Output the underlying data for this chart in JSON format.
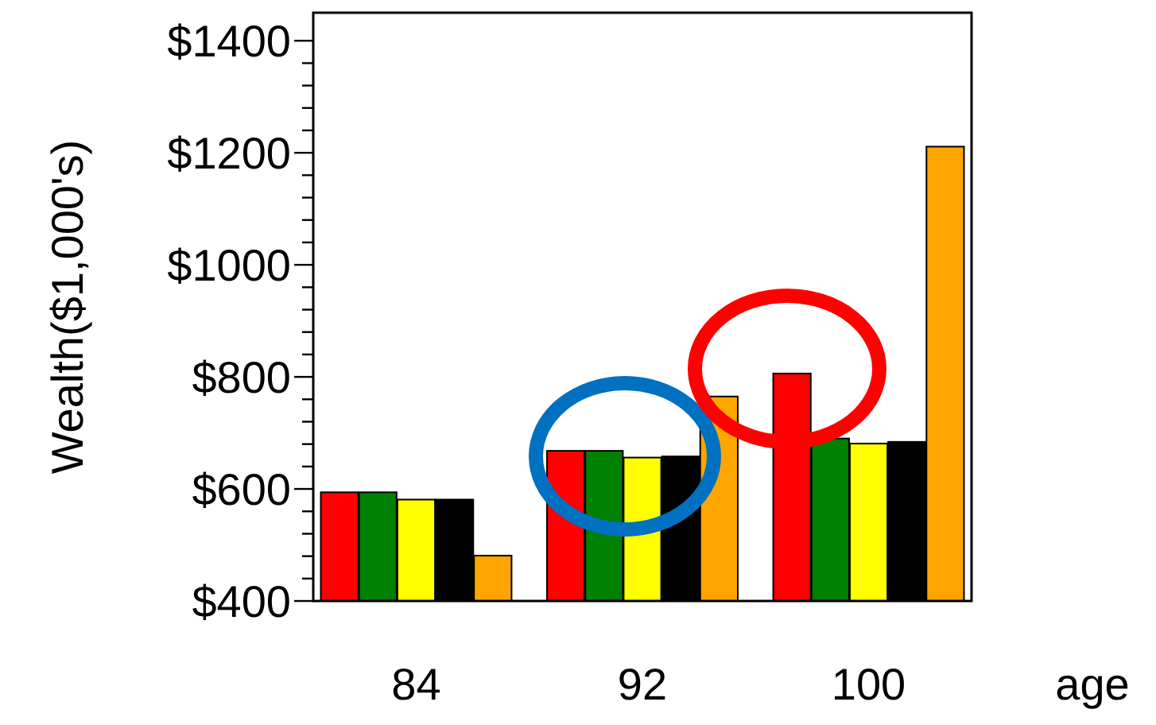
{
  "chart_data": {
    "type": "bar",
    "xlabel": "age",
    "ylabel": "Wealth($1,000's)",
    "categories": [
      "84",
      "92",
      "100"
    ],
    "series": [
      {
        "color": "#ff0000",
        "values": [
          594,
          668,
          806
        ]
      },
      {
        "color": "#008000",
        "values": [
          594,
          668,
          690
        ]
      },
      {
        "color": "#ffff00",
        "values": [
          581,
          656,
          681
        ]
      },
      {
        "color": "#000000",
        "values": [
          581,
          658,
          684
        ]
      },
      {
        "color": "#ffa500",
        "values": [
          481,
          765,
          1211
        ]
      }
    ],
    "ylim": [
      400,
      1450
    ],
    "yticks": [
      {
        "value": 400,
        "label": "$400"
      },
      {
        "value": 440,
        "label": null
      },
      {
        "value": 480,
        "label": null
      },
      {
        "value": 520,
        "label": null
      },
      {
        "value": 560,
        "label": null
      },
      {
        "value": 600,
        "label": "$600"
      },
      {
        "value": 640,
        "label": null
      },
      {
        "value": 680,
        "label": null
      },
      {
        "value": 720,
        "label": null
      },
      {
        "value": 760,
        "label": null
      },
      {
        "value": 800,
        "label": "$800"
      },
      {
        "value": 840,
        "label": null
      },
      {
        "value": 880,
        "label": null
      },
      {
        "value": 920,
        "label": null
      },
      {
        "value": 960,
        "label": null
      },
      {
        "value": 1000,
        "label": "$1000"
      },
      {
        "value": 1040,
        "label": null
      },
      {
        "value": 1080,
        "label": null
      },
      {
        "value": 1120,
        "label": null
      },
      {
        "value": 1160,
        "label": null
      },
      {
        "value": 1200,
        "label": "$1200"
      },
      {
        "value": 1240,
        "label": null
      },
      {
        "value": 1280,
        "label": null
      },
      {
        "value": 1320,
        "label": null
      },
      {
        "value": 1360,
        "label": null
      },
      {
        "value": 1400,
        "label": "$1400"
      }
    ],
    "grid": false
  }
}
